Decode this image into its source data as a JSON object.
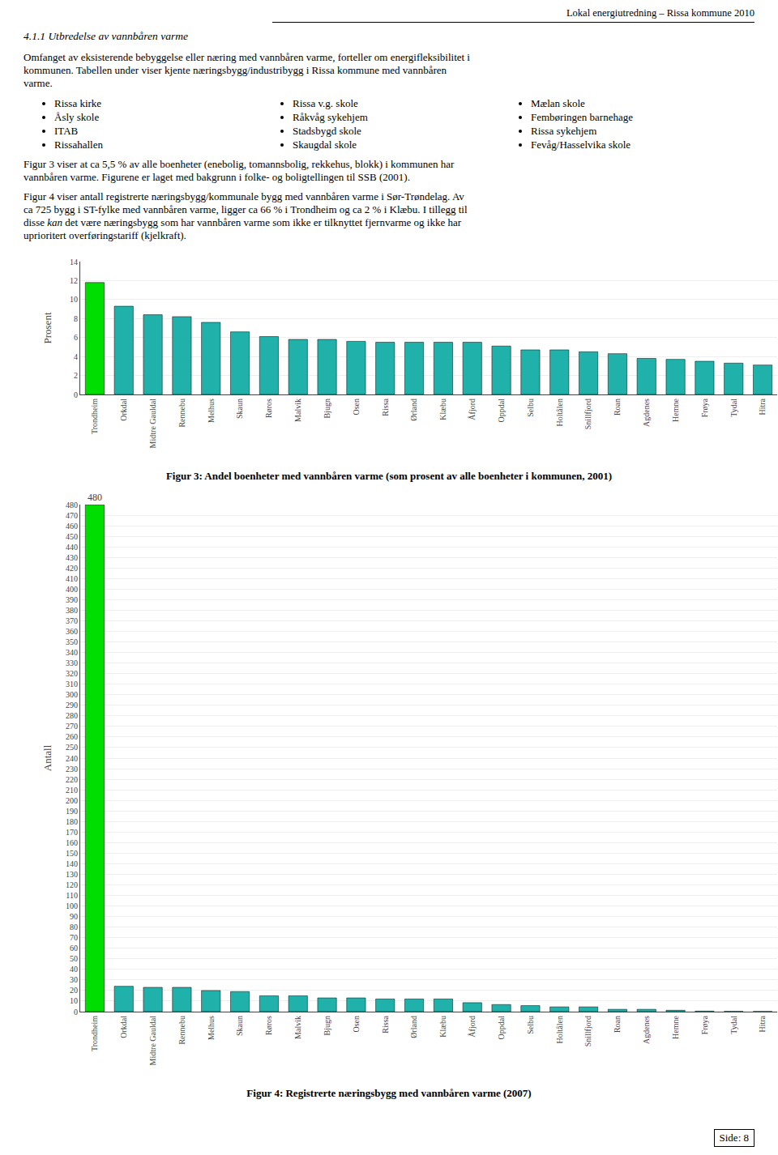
{
  "header": "Lokal energiutredning – Rissa kommune 2010",
  "section_title": "4.1.1   Utbredelse av vannbåren varme",
  "paragraphs_before_bullets": [
    [
      "Omfanget av eksisterende bebyggelse eller næring med vannbåren varme, forteller om energifleksibilitet i",
      "kommunen. Tabellen under viser kjente næringsbygg/industribygg i Rissa kommune med vannbåren",
      "varme."
    ]
  ],
  "bullets": [
    [
      "Rissa kirke",
      "Åsly skole",
      "ITAB",
      "Rissahallen"
    ],
    [
      "Rissa v.g. skole",
      "Råkvåg sykehjem",
      "Stadsbygd skole",
      "Skaugdal skole"
    ],
    [
      "Mælan skole",
      "Fembøringen barnehage",
      "Rissa sykehjem",
      "Fevåg/Hasselvika skole"
    ]
  ],
  "paragraphs_after_bullets": [
    [
      "Figur 3 viser at ca 5,5 % av alle boenheter (enebolig, tomannsbolig, rekkehus, blokk) i kommunen har",
      "vannbåren varme. Figurene er laget med bakgrunn i folke- og boligtellingen til SSB (2001)."
    ],
    [
      "Figur 4 viser antall registrerte næringsbygg/kommunale bygg med vannbåren varme i Sør-Trøndelag. Av",
      "ca 725 bygg i ST-fylke med vannbåren varme, ligger ca 66 % i Trondheim og ca 2 % i Klæbu. I tillegg til",
      [
        {
          "text": "disse "
        },
        {
          "text": "kan",
          "italic": true
        },
        {
          "text": " det være næringsbygg som har vannbåren varme som ikke er tilknyttet fjernvarme og ikke har"
        }
      ],
      "uprioritert overføringstariff (kjelkraft)."
    ]
  ],
  "page_number": "Side: 8",
  "chart_data": [
    {
      "type": "bar",
      "title": "Figur 3: Andel boenheter med vannbåren varme (som prosent av alle boenheter i kommunen, 2001)",
      "ylabel": "Prosent",
      "categories": [
        "Trondheim",
        "Orkdal",
        "Midtre Gauldal",
        "Rennebu",
        "Melhus",
        "Skaun",
        "Røros",
        "Malvik",
        "Bjugn",
        "Osen",
        "Rissa",
        "Ørland",
        "Klæbu",
        "Åfjord",
        "Oppdal",
        "Selbu",
        "Holtålen",
        "Snillfjord",
        "Roan",
        "Agdenes",
        "Hemne",
        "Frøya",
        "Tydal",
        "Hitra"
      ],
      "values": [
        11.8,
        9.3,
        8.4,
        8.2,
        7.6,
        6.6,
        6.1,
        5.8,
        5.8,
        5.6,
        5.5,
        5.5,
        5.5,
        5.5,
        5.1,
        4.7,
        4.7,
        4.5,
        4.3,
        3.8,
        3.7,
        3.5,
        3.3,
        3.1
      ],
      "colors": [
        "#00dd00",
        "#20b2aa",
        "#20b2aa",
        "#20b2aa",
        "#20b2aa",
        "#20b2aa",
        "#20b2aa",
        "#20b2aa",
        "#20b2aa",
        "#20b2aa",
        "#20b2aa",
        "#20b2aa",
        "#20b2aa",
        "#20b2aa",
        "#20b2aa",
        "#20b2aa",
        "#20b2aa",
        "#20b2aa",
        "#20b2aa",
        "#20b2aa",
        "#20b2aa",
        "#20b2aa",
        "#20b2aa",
        "#20b2aa"
      ],
      "ylim": [
        0,
        14
      ],
      "yticks": [
        0,
        2,
        4,
        6,
        8,
        10,
        12,
        14
      ],
      "grid": true
    },
    {
      "type": "bar",
      "title": "Figur 4: Registrerte næringsbygg med vannbåren varme (2007)",
      "ylabel": "Antall",
      "categories": [
        "Trondheim",
        "Orkdal",
        "Midtre Gauldal",
        "Rennebu",
        "Melhus",
        "Skaun",
        "Røros",
        "Malvik",
        "Bjugn",
        "Osen",
        "Rissa",
        "Ørland",
        "Klæbu",
        "Åfjord",
        "Oppdal",
        "Selbu",
        "Holtålen",
        "Snillfjord",
        "Roan",
        "Agdenes",
        "Hemne",
        "Frøya",
        "Tydal",
        "Hitra"
      ],
      "values": [
        480,
        24,
        23,
        23,
        20,
        19,
        15,
        15,
        13,
        13,
        12,
        12,
        12,
        8.5,
        6.7,
        5.7,
        4.5,
        4.5,
        2.2,
        2.2,
        1.3,
        0.5,
        0.3,
        0.2
      ],
      "colors": [
        "#00dd00",
        "#20b2aa",
        "#20b2aa",
        "#20b2aa",
        "#20b2aa",
        "#20b2aa",
        "#20b2aa",
        "#20b2aa",
        "#20b2aa",
        "#20b2aa",
        "#20b2aa",
        "#20b2aa",
        "#20b2aa",
        "#20b2aa",
        "#20b2aa",
        "#20b2aa",
        "#20b2aa",
        "#20b2aa",
        "#20b2aa",
        "#20b2aa",
        "#20b2aa",
        "#20b2aa",
        "#20b2aa",
        "#20b2aa"
      ],
      "ylim": [
        0,
        480
      ],
      "yticks": [
        0,
        10,
        20,
        30,
        40,
        50,
        60,
        70,
        80,
        90,
        100,
        110,
        120,
        130,
        140,
        150,
        160,
        170,
        180,
        190,
        200,
        210,
        220,
        230,
        240,
        250,
        260,
        270,
        280,
        290,
        300,
        310,
        320,
        330,
        340,
        350,
        360,
        370,
        380,
        390,
        400,
        410,
        420,
        430,
        440,
        450,
        460,
        470,
        480
      ],
      "grid": true,
      "annotations": [
        {
          "text": "480",
          "x": "Trondheim",
          "y": 480
        }
      ]
    }
  ]
}
